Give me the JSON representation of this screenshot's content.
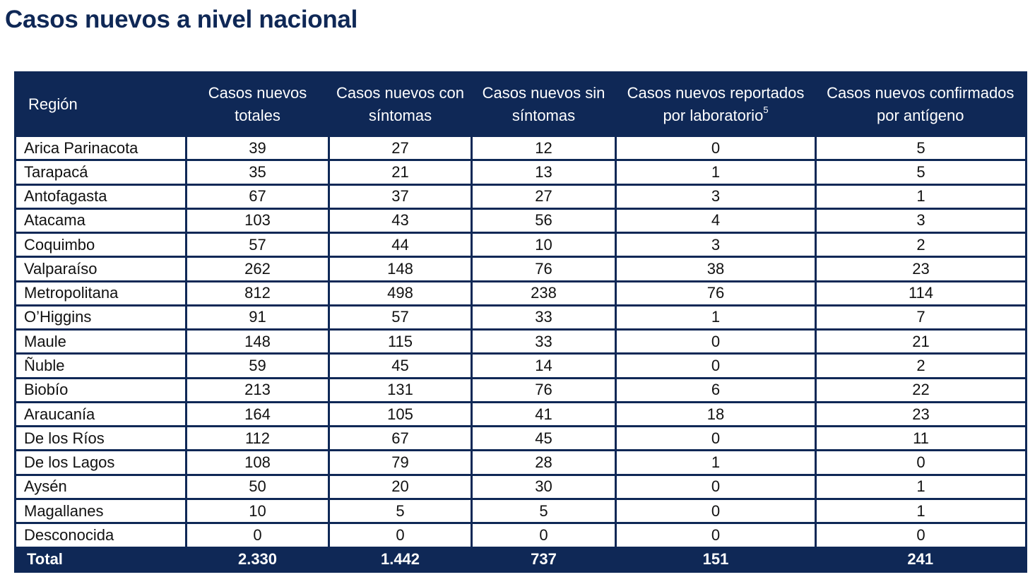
{
  "title": "Casos nuevos a nivel nacional",
  "colors": {
    "header_bg": "#0f2856",
    "header_text": "#ffffff",
    "title": "#0f2856"
  },
  "table": {
    "headers": [
      {
        "label": "Región"
      },
      {
        "label": "Casos nuevos totales"
      },
      {
        "label": "Casos nuevos con síntomas"
      },
      {
        "label": "Casos nuevos sin síntomas"
      },
      {
        "label": "Casos nuevos reportados por laboratorio",
        "sup": "5"
      },
      {
        "label": "Casos nuevos confirmados por antígeno"
      }
    ],
    "rows": [
      [
        "Arica Parinacota",
        "39",
        "27",
        "12",
        "0",
        "5"
      ],
      [
        "Tarapacá",
        "35",
        "21",
        "13",
        "1",
        "5"
      ],
      [
        "Antofagasta",
        "67",
        "37",
        "27",
        "3",
        "1"
      ],
      [
        "Atacama",
        "103",
        "43",
        "56",
        "4",
        "3"
      ],
      [
        "Coquimbo",
        "57",
        "44",
        "10",
        "3",
        "2"
      ],
      [
        "Valparaíso",
        "262",
        "148",
        "76",
        "38",
        "23"
      ],
      [
        "Metropolitana",
        "812",
        "498",
        "238",
        "76",
        "114"
      ],
      [
        "O’Higgins",
        "91",
        "57",
        "33",
        "1",
        "7"
      ],
      [
        "Maule",
        "148",
        "115",
        "33",
        "0",
        "21"
      ],
      [
        "Ñuble",
        "59",
        "45",
        "14",
        "0",
        "2"
      ],
      [
        "Biobío",
        "213",
        "131",
        "76",
        "6",
        "22"
      ],
      [
        "Araucanía",
        "164",
        "105",
        "41",
        "18",
        "23"
      ],
      [
        "De los Ríos",
        "112",
        "67",
        "45",
        "0",
        "11"
      ],
      [
        "De los Lagos",
        "108",
        "79",
        "28",
        "1",
        "0"
      ],
      [
        "Aysén",
        "50",
        "20",
        "30",
        "0",
        "1"
      ],
      [
        "Magallanes",
        "10",
        "5",
        "5",
        "0",
        "1"
      ],
      [
        "Desconocida",
        "0",
        "0",
        "0",
        "0",
        "0"
      ]
    ],
    "total": [
      "Total",
      "2.330",
      "1.442",
      "737",
      "151",
      "241"
    ]
  }
}
